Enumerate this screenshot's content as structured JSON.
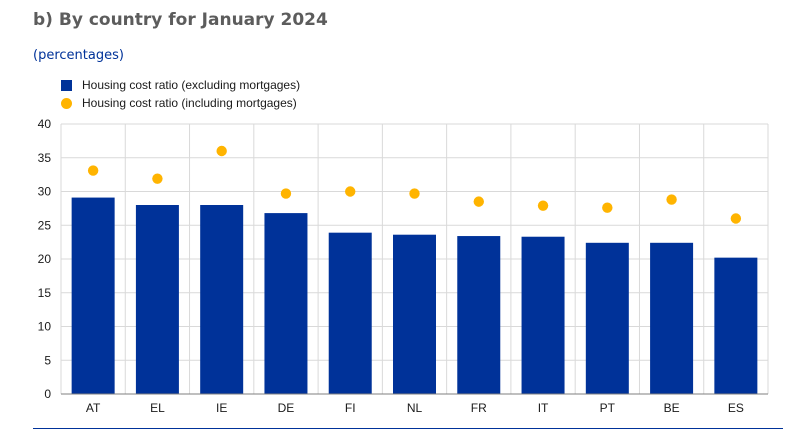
{
  "header": {
    "title": "b) By country for January 2024",
    "subtitle": "(percentages)"
  },
  "legend": {
    "bar_label": "Housing cost ratio (excluding mortgages)",
    "dot_label": "Housing cost ratio (including mortgages)"
  },
  "colors": {
    "bar": "#003299",
    "dot": "#ffb400",
    "grid": "#d9d9d9",
    "text": "#1a1a1a"
  },
  "chart_data": {
    "type": "bar",
    "categories": [
      "AT",
      "EL",
      "IE",
      "DE",
      "FI",
      "NL",
      "FR",
      "IT",
      "PT",
      "BE",
      "ES"
    ],
    "series": [
      {
        "name": "Housing cost ratio (excluding mortgages)",
        "kind": "bar",
        "values": [
          29.1,
          28.0,
          28.0,
          26.8,
          23.9,
          23.6,
          23.4,
          23.3,
          22.4,
          22.4,
          20.2
        ]
      },
      {
        "name": "Housing cost ratio (including mortgages)",
        "kind": "point",
        "values": [
          33.1,
          31.9,
          36.0,
          29.7,
          30.0,
          29.7,
          28.5,
          27.9,
          27.6,
          28.8,
          26.0
        ]
      }
    ],
    "yticks": [
      0,
      5,
      10,
      15,
      20,
      25,
      30,
      35,
      40
    ],
    "ylim": [
      0,
      40
    ],
    "grid": true,
    "legend_position": "top-left"
  }
}
